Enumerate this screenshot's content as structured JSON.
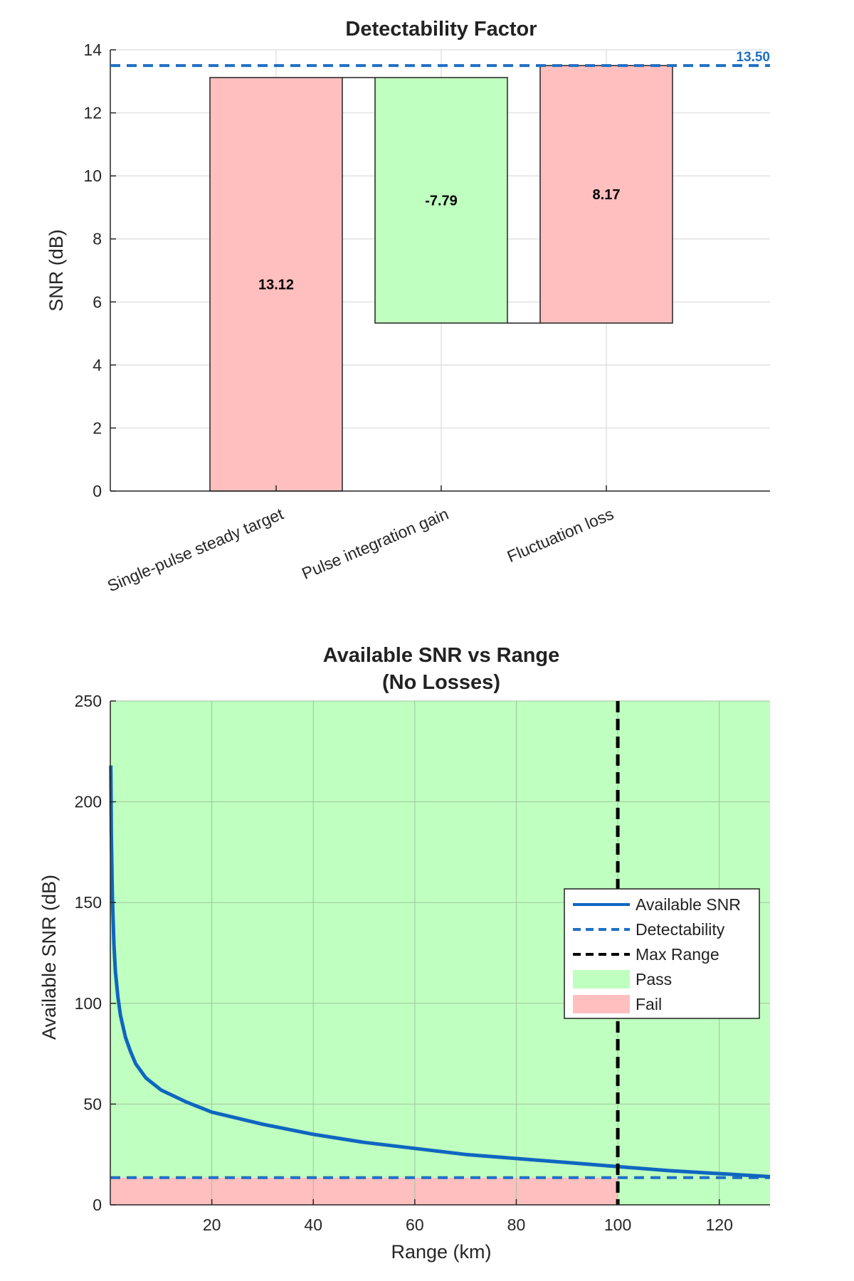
{
  "chart_data": [
    {
      "type": "bar",
      "subtype": "waterfall",
      "title": "Detectability Factor",
      "xlabel": "",
      "ylabel": "SNR (dB)",
      "ylim": [
        0,
        14
      ],
      "yticks": [
        0,
        2,
        4,
        6,
        8,
        10,
        12,
        14
      ],
      "grid": true,
      "categories": [
        "Single-pulse steady target",
        "Pulse integration gain",
        "Fluctuation loss"
      ],
      "values": [
        13.12,
        -7.79,
        8.17
      ],
      "value_labels": [
        "13.12",
        "-7.79",
        "8.17"
      ],
      "bar_colors": [
        "#ffbfbf",
        "#bfffbf",
        "#ffbfbf"
      ],
      "reference_line": {
        "value": 13.5,
        "label": "13.50",
        "color": "#1f6fc5",
        "style": "dashed"
      }
    },
    {
      "type": "line",
      "title": [
        "Available SNR vs Range",
        "(No Losses)"
      ],
      "xlabel": "Range (km)",
      "ylabel": "Available SNR (dB)",
      "xlim": [
        0,
        130
      ],
      "ylim": [
        0,
        250
      ],
      "xticks": [
        20,
        40,
        60,
        80,
        100,
        120
      ],
      "yticks": [
        0,
        50,
        100,
        150,
        200,
        250
      ],
      "grid": true,
      "legend_position": "right",
      "series": [
        {
          "name": "Available SNR",
          "color": "#0f66c0",
          "style": "solid",
          "x": [
            0.1,
            0.2,
            0.4,
            0.7,
            1,
            1.5,
            2,
            3,
            4,
            5,
            7,
            10,
            15,
            20,
            30,
            40,
            50,
            60,
            70,
            80,
            90,
            100,
            110,
            120,
            130
          ],
          "y": [
            218,
            184,
            153,
            130,
            116,
            103,
            94,
            83,
            76,
            70,
            63,
            57,
            51,
            46,
            40,
            35,
            31,
            28,
            25,
            23,
            21,
            19,
            17,
            15.5,
            14
          ]
        },
        {
          "name": "Detectability",
          "color": "#1f6fc5",
          "style": "dashed",
          "y": 13.5
        },
        {
          "name": "Max Range",
          "color": "#000000",
          "style": "dashed",
          "x": 100
        }
      ],
      "regions": [
        {
          "name": "Pass",
          "color": "#bfffbf"
        },
        {
          "name": "Fail",
          "color": "#ffbfbf",
          "x": [
            0,
            100
          ],
          "y": [
            0,
            13.5
          ]
        }
      ]
    }
  ]
}
